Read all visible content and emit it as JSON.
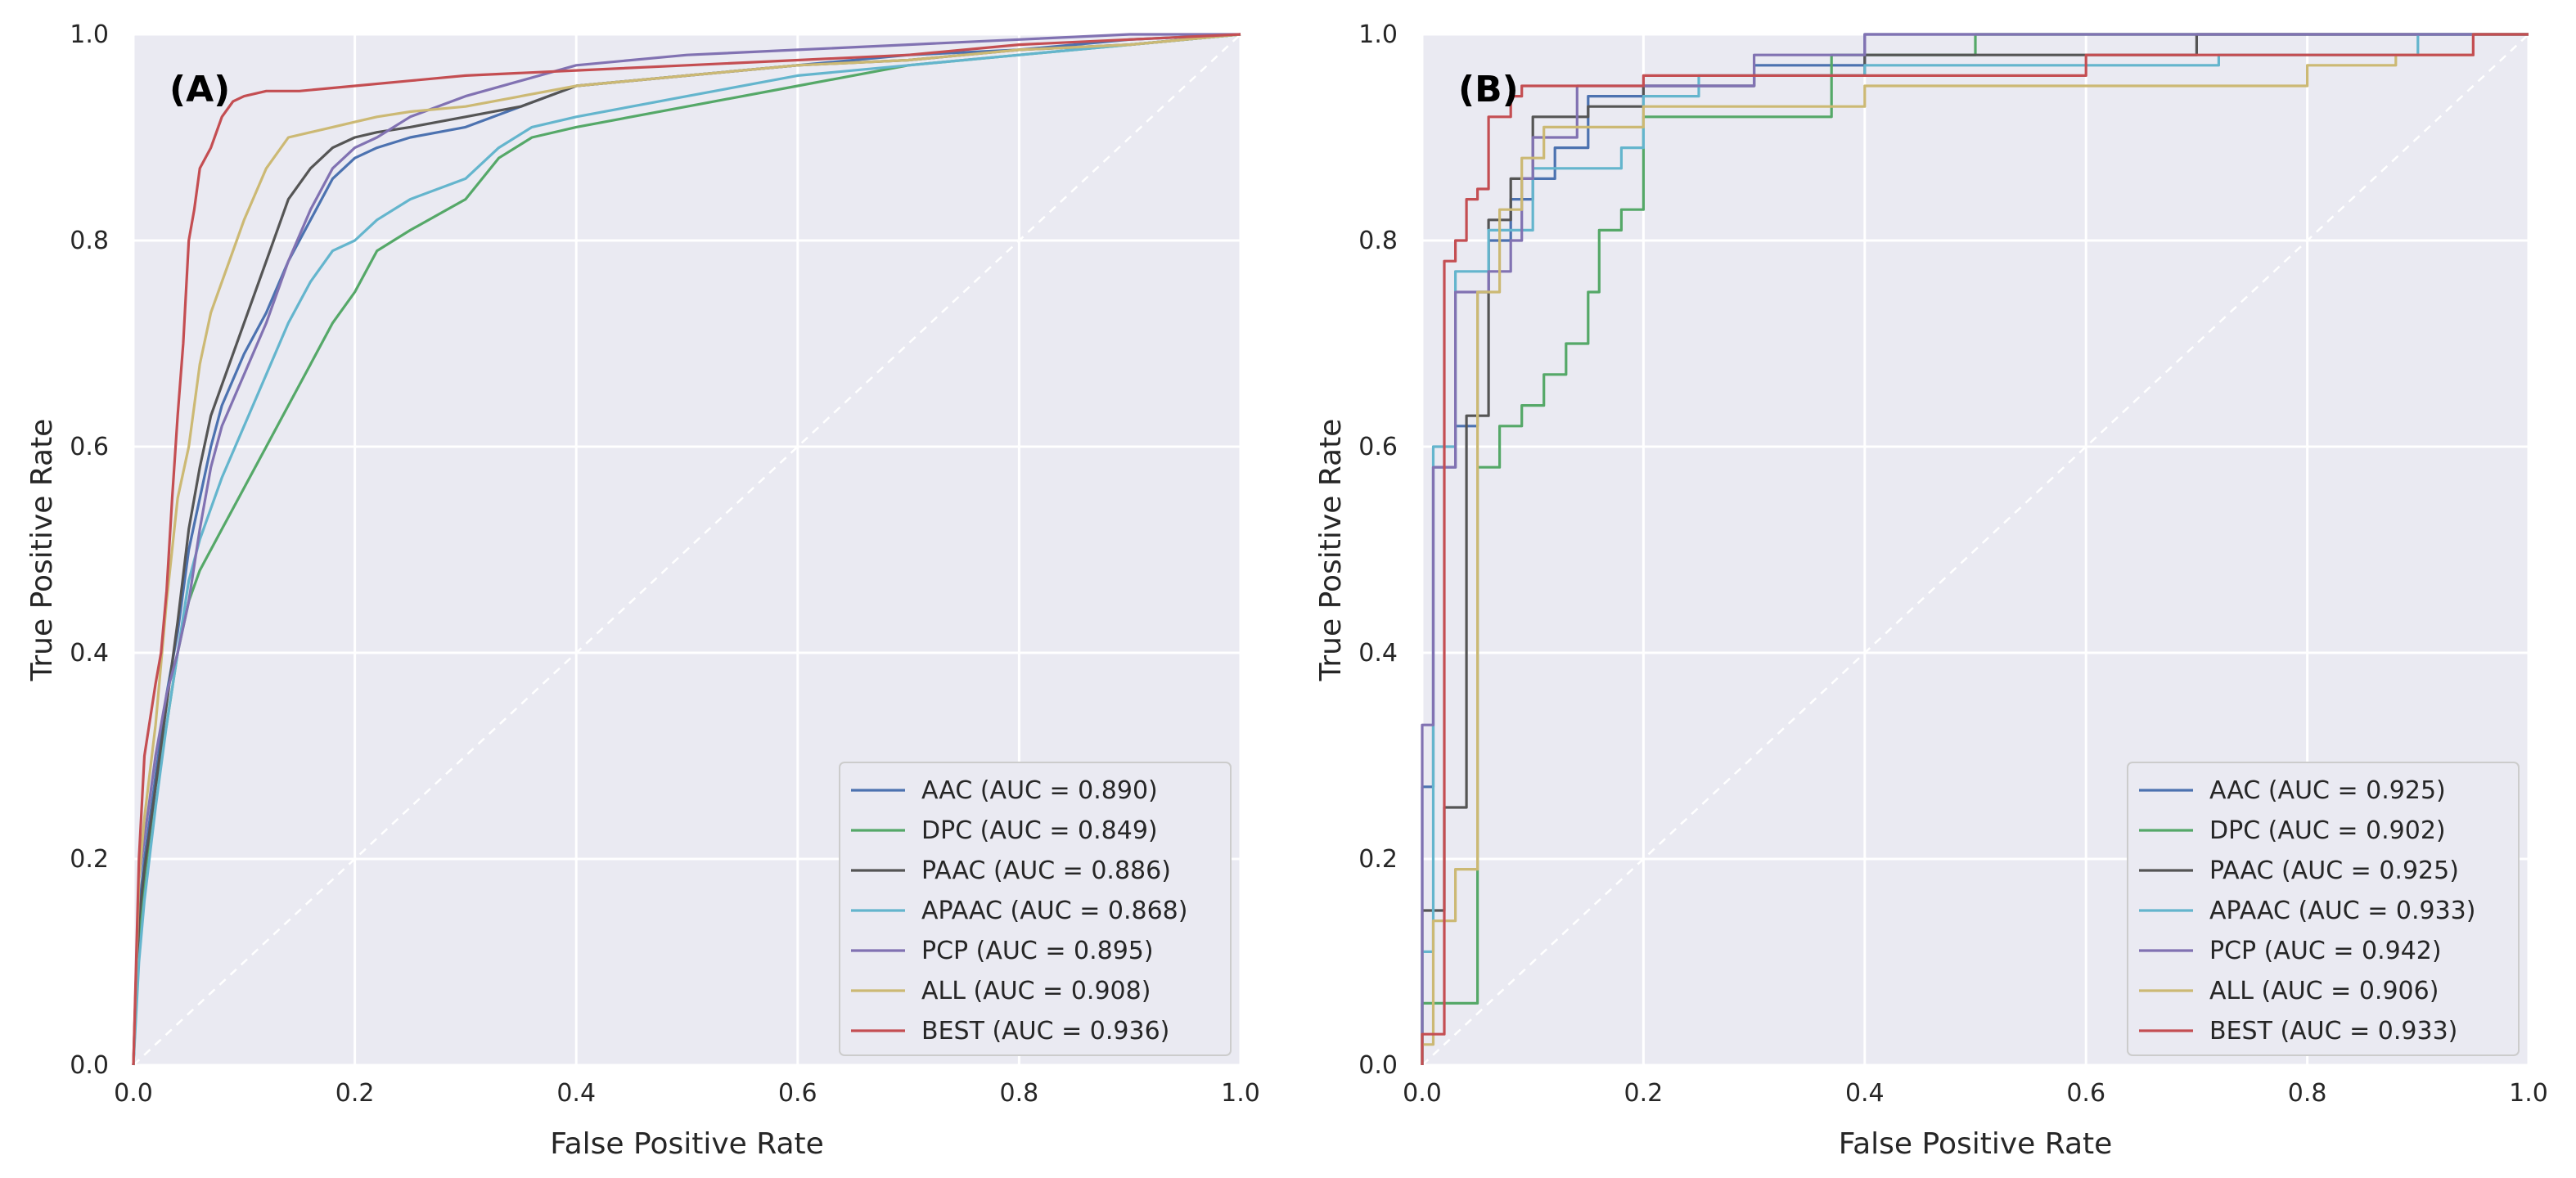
{
  "chart_data": [
    {
      "type": "line",
      "panel_label": "(A)",
      "xlabel": "False Positive Rate",
      "ylabel": "True Positive Rate",
      "xlim": [
        0.0,
        1.0
      ],
      "ylim": [
        0.0,
        1.0
      ],
      "xticks": [
        "0.0",
        "0.2",
        "0.4",
        "0.6",
        "0.8",
        "1.0"
      ],
      "yticks": [
        "0.0",
        "0.2",
        "0.4",
        "0.6",
        "0.8",
        "1.0"
      ],
      "grid": true,
      "legend_position": "lower-right",
      "diagonal": true,
      "series": [
        {
          "name": "AAC (AUC = 0.890)",
          "color": "#4c72b0",
          "x": [
            0,
            0.005,
            0.01,
            0.02,
            0.03,
            0.04,
            0.05,
            0.06,
            0.07,
            0.08,
            0.1,
            0.12,
            0.14,
            0.16,
            0.18,
            0.2,
            0.22,
            0.25,
            0.3,
            0.35,
            0.4,
            0.5,
            0.6,
            0.7,
            0.8,
            0.9,
            1.0
          ],
          "y": [
            0,
            0.15,
            0.2,
            0.28,
            0.36,
            0.42,
            0.5,
            0.55,
            0.6,
            0.64,
            0.69,
            0.73,
            0.78,
            0.82,
            0.86,
            0.88,
            0.89,
            0.9,
            0.91,
            0.93,
            0.95,
            0.96,
            0.97,
            0.98,
            0.985,
            0.995,
            1.0
          ]
        },
        {
          "name": "DPC (AUC = 0.849)",
          "color": "#55a868",
          "x": [
            0,
            0.005,
            0.01,
            0.02,
            0.03,
            0.04,
            0.05,
            0.06,
            0.07,
            0.08,
            0.1,
            0.12,
            0.14,
            0.16,
            0.18,
            0.2,
            0.22,
            0.25,
            0.3,
            0.33,
            0.36,
            0.4,
            0.5,
            0.6,
            0.7,
            0.8,
            0.9,
            1.0
          ],
          "y": [
            0,
            0.12,
            0.18,
            0.27,
            0.33,
            0.4,
            0.45,
            0.48,
            0.5,
            0.52,
            0.56,
            0.6,
            0.64,
            0.68,
            0.72,
            0.75,
            0.79,
            0.81,
            0.84,
            0.88,
            0.9,
            0.91,
            0.93,
            0.95,
            0.97,
            0.98,
            0.99,
            1.0
          ]
        },
        {
          "name": "PAAC (AUC = 0.886)",
          "color": "#555555",
          "x": [
            0,
            0.005,
            0.01,
            0.02,
            0.03,
            0.04,
            0.05,
            0.06,
            0.07,
            0.08,
            0.1,
            0.12,
            0.14,
            0.16,
            0.18,
            0.2,
            0.22,
            0.25,
            0.3,
            0.35,
            0.4,
            0.5,
            0.6,
            0.7,
            0.8,
            0.9,
            1.0
          ],
          "y": [
            0,
            0.14,
            0.19,
            0.27,
            0.35,
            0.43,
            0.52,
            0.58,
            0.63,
            0.66,
            0.72,
            0.78,
            0.84,
            0.87,
            0.89,
            0.9,
            0.905,
            0.91,
            0.92,
            0.93,
            0.95,
            0.96,
            0.97,
            0.975,
            0.985,
            0.99,
            1.0
          ]
        },
        {
          "name": "APAAC (AUC = 0.868)",
          "color": "#64b5cd",
          "x": [
            0,
            0.005,
            0.01,
            0.02,
            0.03,
            0.04,
            0.05,
            0.06,
            0.07,
            0.08,
            0.1,
            0.12,
            0.14,
            0.16,
            0.18,
            0.2,
            0.22,
            0.25,
            0.3,
            0.33,
            0.36,
            0.4,
            0.5,
            0.6,
            0.7,
            0.8,
            0.9,
            1.0
          ],
          "y": [
            0,
            0.1,
            0.16,
            0.25,
            0.33,
            0.4,
            0.47,
            0.51,
            0.54,
            0.57,
            0.62,
            0.67,
            0.72,
            0.76,
            0.79,
            0.8,
            0.82,
            0.84,
            0.86,
            0.89,
            0.91,
            0.92,
            0.94,
            0.96,
            0.97,
            0.98,
            0.99,
            1.0
          ]
        },
        {
          "name": "PCP (AUC = 0.895)",
          "color": "#8172b2",
          "x": [
            0,
            0.005,
            0.01,
            0.02,
            0.03,
            0.04,
            0.05,
            0.06,
            0.07,
            0.08,
            0.1,
            0.12,
            0.14,
            0.16,
            0.18,
            0.2,
            0.22,
            0.25,
            0.3,
            0.35,
            0.4,
            0.5,
            0.6,
            0.7,
            0.8,
            0.9,
            1.0
          ],
          "y": [
            0,
            0.18,
            0.22,
            0.3,
            0.36,
            0.4,
            0.45,
            0.52,
            0.58,
            0.62,
            0.67,
            0.72,
            0.78,
            0.83,
            0.87,
            0.89,
            0.9,
            0.92,
            0.94,
            0.955,
            0.97,
            0.98,
            0.985,
            0.99,
            0.995,
            1.0,
            1.0
          ]
        },
        {
          "name": "ALL (AUC = 0.908)",
          "color": "#ccb974",
          "x": [
            0,
            0.005,
            0.01,
            0.02,
            0.03,
            0.04,
            0.05,
            0.06,
            0.07,
            0.08,
            0.1,
            0.12,
            0.14,
            0.16,
            0.18,
            0.2,
            0.22,
            0.25,
            0.3,
            0.35,
            0.4,
            0.5,
            0.6,
            0.7,
            0.8,
            0.9,
            1.0
          ],
          "y": [
            0,
            0.18,
            0.24,
            0.33,
            0.45,
            0.55,
            0.6,
            0.68,
            0.73,
            0.76,
            0.82,
            0.87,
            0.9,
            0.905,
            0.91,
            0.915,
            0.92,
            0.925,
            0.93,
            0.94,
            0.95,
            0.96,
            0.97,
            0.975,
            0.985,
            0.99,
            1.0
          ]
        },
        {
          "name": "BEST (AUC = 0.936)",
          "color": "#c44e52",
          "x": [
            0,
            0.005,
            0.01,
            0.02,
            0.025,
            0.03,
            0.035,
            0.04,
            0.045,
            0.05,
            0.055,
            0.06,
            0.07,
            0.08,
            0.09,
            0.1,
            0.12,
            0.15,
            0.2,
            0.25,
            0.3,
            0.4,
            0.5,
            0.6,
            0.7,
            0.8,
            0.9,
            1.0
          ],
          "y": [
            0,
            0.2,
            0.3,
            0.37,
            0.4,
            0.46,
            0.55,
            0.63,
            0.7,
            0.8,
            0.83,
            0.87,
            0.89,
            0.92,
            0.935,
            0.94,
            0.945,
            0.945,
            0.95,
            0.955,
            0.96,
            0.965,
            0.97,
            0.975,
            0.98,
            0.99,
            0.995,
            1.0
          ]
        }
      ]
    },
    {
      "type": "line",
      "panel_label": "(B)",
      "xlabel": "False Positive Rate",
      "ylabel": "True Positive Rate",
      "xlim": [
        0.0,
        1.0
      ],
      "ylim": [
        0.0,
        1.0
      ],
      "xticks": [
        "0.0",
        "0.2",
        "0.4",
        "0.6",
        "0.8",
        "1.0"
      ],
      "yticks": [
        "0.0",
        "0.2",
        "0.4",
        "0.6",
        "0.8",
        "1.0"
      ],
      "grid": true,
      "legend_position": "lower-right",
      "diagonal": true,
      "series": [
        {
          "name": "AAC (AUC = 0.925)",
          "color": "#4c72b0",
          "x": [
            0,
            0,
            0.01,
            0.01,
            0.03,
            0.03,
            0.05,
            0.05,
            0.06,
            0.06,
            0.08,
            0.08,
            0.1,
            0.1,
            0.12,
            0.12,
            0.15,
            0.15,
            0.2,
            0.2,
            0.3,
            0.3,
            0.4,
            0.4,
            0.7,
            0.7,
            1.0
          ],
          "y": [
            0,
            0.27,
            0.27,
            0.58,
            0.58,
            0.62,
            0.62,
            0.75,
            0.75,
            0.8,
            0.8,
            0.84,
            0.84,
            0.86,
            0.86,
            0.89,
            0.89,
            0.94,
            0.94,
            0.95,
            0.95,
            0.97,
            0.97,
            1.0,
            1.0,
            1.0,
            1.0
          ]
        },
        {
          "name": "DPC (AUC = 0.902)",
          "color": "#55a868",
          "x": [
            0,
            0,
            0.05,
            0.05,
            0.07,
            0.07,
            0.09,
            0.09,
            0.11,
            0.11,
            0.13,
            0.13,
            0.15,
            0.15,
            0.16,
            0.16,
            0.18,
            0.18,
            0.2,
            0.2,
            0.37,
            0.37,
            0.5,
            0.5,
            1.0
          ],
          "y": [
            0,
            0.06,
            0.06,
            0.58,
            0.58,
            0.62,
            0.62,
            0.64,
            0.64,
            0.67,
            0.67,
            0.7,
            0.7,
            0.75,
            0.75,
            0.81,
            0.81,
            0.83,
            0.83,
            0.92,
            0.92,
            0.98,
            0.98,
            1.0,
            1.0
          ]
        },
        {
          "name": "PAAC (AUC = 0.925)",
          "color": "#555555",
          "x": [
            0,
            0,
            0.02,
            0.02,
            0.04,
            0.04,
            0.06,
            0.06,
            0.08,
            0.08,
            0.1,
            0.1,
            0.15,
            0.15,
            0.2,
            0.2,
            0.3,
            0.3,
            0.4,
            0.4,
            0.7,
            0.7,
            1.0
          ],
          "y": [
            0,
            0.15,
            0.15,
            0.25,
            0.25,
            0.63,
            0.63,
            0.82,
            0.82,
            0.86,
            0.86,
            0.92,
            0.92,
            0.93,
            0.93,
            0.95,
            0.95,
            0.96,
            0.96,
            0.98,
            0.98,
            1.0,
            1.0
          ]
        },
        {
          "name": "APAAC (AUC = 0.933)",
          "color": "#64b5cd",
          "x": [
            0,
            0,
            0.01,
            0.01,
            0.03,
            0.03,
            0.06,
            0.06,
            0.1,
            0.1,
            0.18,
            0.18,
            0.2,
            0.2,
            0.25,
            0.25,
            0.4,
            0.4,
            0.72,
            0.72,
            0.9,
            0.9,
            1.0
          ],
          "y": [
            0,
            0.11,
            0.11,
            0.6,
            0.6,
            0.77,
            0.77,
            0.81,
            0.81,
            0.87,
            0.87,
            0.89,
            0.89,
            0.94,
            0.94,
            0.96,
            0.96,
            0.97,
            0.97,
            0.98,
            0.98,
            1.0,
            1.0
          ]
        },
        {
          "name": "PCP (AUC = 0.942)",
          "color": "#8172b2",
          "x": [
            0,
            0,
            0.01,
            0.01,
            0.03,
            0.03,
            0.06,
            0.06,
            0.08,
            0.08,
            0.09,
            0.09,
            0.1,
            0.1,
            0.14,
            0.14,
            0.3,
            0.3,
            0.4,
            0.4,
            1.0
          ],
          "y": [
            0,
            0.33,
            0.33,
            0.58,
            0.58,
            0.75,
            0.75,
            0.77,
            0.77,
            0.8,
            0.8,
            0.86,
            0.86,
            0.9,
            0.9,
            0.95,
            0.95,
            0.98,
            0.98,
            1.0,
            1.0
          ]
        },
        {
          "name": "ALL (AUC = 0.906)",
          "color": "#ccb974",
          "x": [
            0,
            0,
            0.01,
            0.01,
            0.03,
            0.03,
            0.05,
            0.05,
            0.07,
            0.07,
            0.09,
            0.09,
            0.11,
            0.11,
            0.2,
            0.2,
            0.4,
            0.4,
            0.8,
            0.8,
            0.88,
            0.88,
            0.95,
            0.95,
            1.0
          ],
          "y": [
            0,
            0.02,
            0.02,
            0.14,
            0.14,
            0.19,
            0.19,
            0.75,
            0.75,
            0.83,
            0.83,
            0.88,
            0.88,
            0.91,
            0.91,
            0.93,
            0.93,
            0.95,
            0.95,
            0.97,
            0.97,
            0.98,
            0.98,
            1.0,
            1.0
          ]
        },
        {
          "name": "BEST (AUC = 0.933)",
          "color": "#c44e52",
          "x": [
            0,
            0,
            0.02,
            0.02,
            0.03,
            0.03,
            0.04,
            0.04,
            0.05,
            0.05,
            0.06,
            0.06,
            0.08,
            0.08,
            0.09,
            0.09,
            0.2,
            0.2,
            0.6,
            0.6,
            0.95,
            0.95,
            1.0
          ],
          "y": [
            0,
            0.03,
            0.03,
            0.78,
            0.78,
            0.8,
            0.8,
            0.84,
            0.84,
            0.85,
            0.85,
            0.92,
            0.92,
            0.94,
            0.94,
            0.95,
            0.95,
            0.96,
            0.96,
            0.98,
            0.98,
            1.0,
            1.0
          ]
        }
      ]
    }
  ]
}
